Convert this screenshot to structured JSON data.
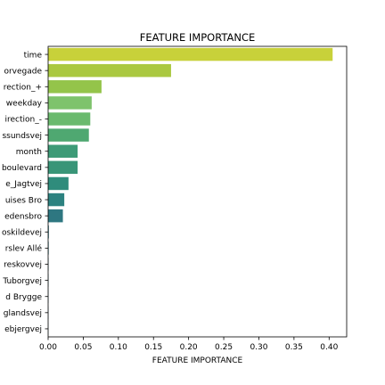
{
  "chart_data": {
    "type": "bar",
    "orientation": "horizontal",
    "title": "FEATURE IMPORTANCE",
    "xlabel": "FEATURE IMPORTANCE",
    "ylabel": "",
    "xlim": [
      0,
      0.425
    ],
    "xticks": [
      "0.00",
      "0.05",
      "0.10",
      "0.15",
      "0.20",
      "0.25",
      "0.30",
      "0.35",
      "0.40"
    ],
    "categories": [
      "time",
      "orvegade",
      "rection_+",
      "weekday",
      "irection_-",
      "ssundsvej",
      "month",
      "boulevard",
      "e_Jagtvej",
      "uises Bro",
      "edensbro",
      "oskildevej",
      "rslev Allé",
      "reskovvej",
      "Tuborgvej",
      "d Brygge",
      "glandsvej",
      "ebjergvej"
    ],
    "values": [
      0.405,
      0.175,
      0.076,
      0.062,
      0.06,
      0.058,
      0.042,
      0.042,
      0.029,
      0.023,
      0.021,
      0.001,
      0.0008,
      0.0006,
      0.0005,
      0.0004,
      0.0003,
      0.0002
    ],
    "colors": [
      "#c8d13a",
      "#aac840",
      "#94c44a",
      "#7ec36c",
      "#6aba6e",
      "#4fa871",
      "#3d9b77",
      "#399578",
      "#2f8c7c",
      "#2c8280",
      "#2e7781",
      "#2e7781",
      "#2e7781",
      "#2e7781",
      "#2e7781",
      "#2e7781",
      "#2e7781",
      "#2e7781"
    ],
    "grid": false,
    "legend": "none"
  }
}
